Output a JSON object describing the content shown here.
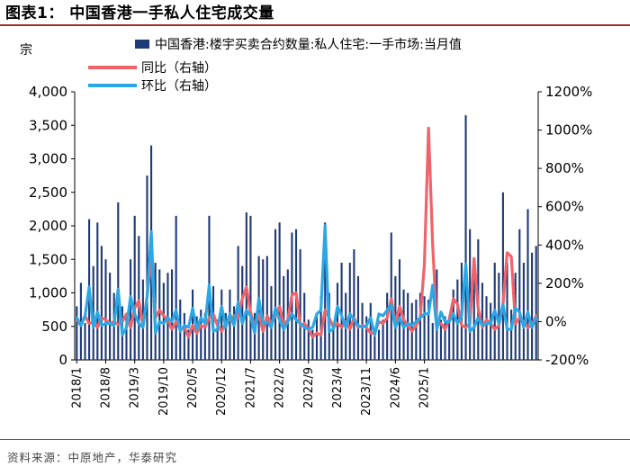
{
  "title": "图表1：  中国香港一手私人住宅成交量",
  "source": "资料来源：中原地产，华泰研究",
  "colors": {
    "bar": "#1f3a78",
    "yoy": "#f0636a",
    "mom": "#2aa8e6",
    "accent": "#a03030"
  },
  "chart_data": {
    "type": "bar+line",
    "left_axis": {
      "unit": "宗",
      "ylim": [
        0,
        4000
      ],
      "ticks": [
        "0",
        "500",
        "1,000",
        "1,500",
        "2,000",
        "2,500",
        "3,000",
        "3,500",
        "4,000"
      ],
      "tick_values": [
        0,
        500,
        1000,
        1500,
        2000,
        2500,
        3000,
        3500,
        4000
      ]
    },
    "right_axis": {
      "ylim": [
        -200,
        1200
      ],
      "ticks": [
        "-200%",
        "0%",
        "200%",
        "400%",
        "600%",
        "800%",
        "1000%",
        "1200%"
      ],
      "tick_values": [
        -200,
        0,
        200,
        400,
        600,
        800,
        1000,
        1200
      ]
    },
    "x_tick_labels": [
      "2018/1",
      "2018/8",
      "2019/3",
      "2019/10",
      "2020/5",
      "2020/12",
      "2021/7",
      "2022/2",
      "2022/9",
      "2023/4",
      "2023/11",
      "2024/6",
      "2025/1"
    ],
    "x_tick_every": 7,
    "start": "2018/1",
    "legend": [
      "中国香港:楼宇买卖合约数量:私人住宅:一手市场:当月值",
      "同比（右轴）",
      "环比（右轴）"
    ],
    "series": [
      {
        "name": "中国香港:楼宇买卖合约数量:私人住宅:一手市场:当月值",
        "axis": "left",
        "kind": "bar",
        "values": [
          800,
          1150,
          550,
          2100,
          1400,
          2050,
          1700,
          1500,
          1300,
          1000,
          2350,
          800,
          650,
          1500,
          2150,
          1850,
          1200,
          2750,
          3200,
          1450,
          1350,
          1150,
          1300,
          1350,
          2150,
          900,
          700,
          450,
          1050,
          650,
          750,
          700,
          2150,
          1100,
          600,
          1050,
          700,
          1050,
          800,
          1700,
          1400,
          2200,
          2150,
          700,
          1550,
          1500,
          1550,
          1100,
          1950,
          2050,
          1250,
          1350,
          1900,
          1950,
          1650,
          1000,
          600,
          450,
          650,
          950,
          2050,
          1000,
          550,
          1150,
          1450,
          1000,
          1450,
          1650,
          1250,
          850,
          650,
          850,
          350,
          450,
          600,
          1000,
          1900,
          1250,
          1500,
          1050,
          1000,
          850,
          900,
          1000,
          950,
          900,
          550,
          1350,
          600,
          650,
          650,
          1050,
          1200,
          1450,
          3650,
          1950,
          1400,
          1800,
          1150,
          950,
          850,
          1450,
          1300,
          2500,
          1450,
          750,
          1300,
          1950,
          1450,
          2250,
          1600,
          1700
        ]
      },
      {
        "name": "同比（右轴）",
        "axis": "right",
        "kind": "line",
        "values": [
          10,
          -20,
          30,
          -10,
          0,
          -30,
          20,
          10,
          -10,
          0,
          -15,
          0,
          40,
          -30,
          70,
          110,
          -20,
          130,
          330,
          20,
          60,
          30,
          10,
          -40,
          0,
          -40,
          -30,
          -80,
          -20,
          -60,
          -20,
          -30,
          20,
          40,
          -20,
          -50,
          -10,
          10,
          30,
          20,
          120,
          180,
          50,
          -30,
          40,
          -50,
          30,
          -10,
          30,
          80,
          -20,
          10,
          140,
          150,
          -20,
          -10,
          -40,
          -80,
          -60,
          -70,
          60,
          20,
          -30,
          -10,
          -30,
          0,
          -40,
          20,
          -30,
          -20,
          -30,
          -60,
          -60,
          0,
          -10,
          20,
          120,
          -10,
          80,
          10,
          -20,
          -50,
          -20,
          20,
          300,
          1010,
          400,
          -20,
          -10,
          -40,
          10,
          120,
          90,
          -20,
          -30,
          -10,
          330,
          70,
          -30,
          10,
          -10,
          -40,
          -20,
          90,
          360,
          340,
          -10,
          20,
          0,
          -30,
          -20,
          30
        ]
      },
      {
        "name": "环比（右轴）",
        "axis": "right",
        "kind": "line",
        "values": [
          20,
          -20,
          30,
          180,
          -30,
          50,
          -20,
          -10,
          -10,
          -20,
          170,
          -70,
          -30,
          130,
          40,
          -10,
          -30,
          130,
          470,
          -60,
          0,
          -10,
          20,
          0,
          60,
          -50,
          -20,
          -30,
          70,
          -40,
          20,
          -10,
          190,
          -50,
          -40,
          80,
          -30,
          40,
          -20,
          100,
          -10,
          60,
          30,
          -60,
          120,
          -10,
          0,
          -30,
          70,
          10,
          -40,
          0,
          40,
          10,
          -10,
          -30,
          -40,
          -30,
          40,
          60,
          500,
          -50,
          -40,
          80,
          30,
          -30,
          40,
          10,
          -20,
          -30,
          -20,
          20,
          -70,
          40,
          30,
          60,
          90,
          -30,
          20,
          -30,
          -10,
          -20,
          0,
          20,
          40,
          40,
          190,
          -40,
          50,
          0,
          0,
          40,
          -10,
          30,
          300,
          -50,
          -30,
          20,
          -20,
          -10,
          -10,
          60,
          -10,
          90,
          -40,
          -40,
          70,
          50,
          -30,
          50,
          -30,
          20
        ]
      }
    ]
  }
}
